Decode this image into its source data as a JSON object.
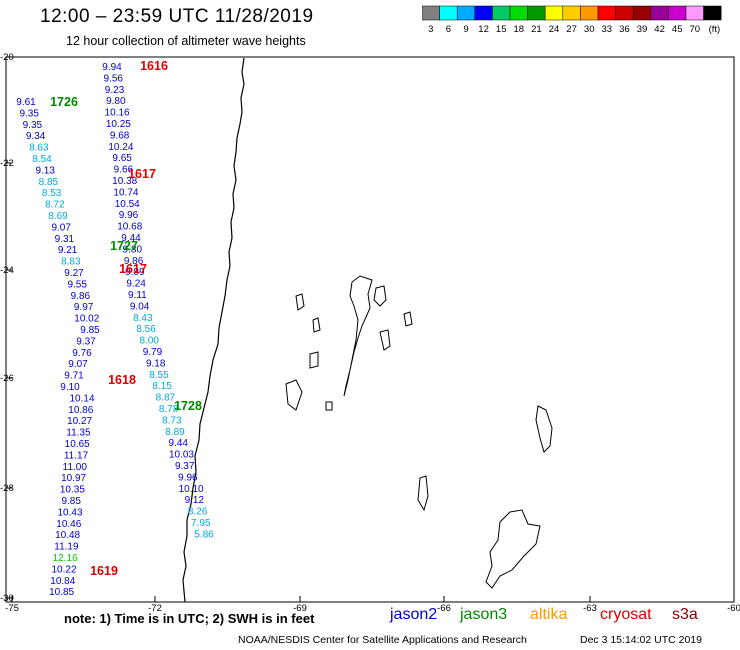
{
  "header": {
    "title": "12:00 – 23:59 UTC 11/28/2019",
    "subtitle": "12 hour collection of altimeter wave heights"
  },
  "colorbar": {
    "colors": [
      "#808080",
      "#00ffff",
      "#00aaff",
      "#0000ff",
      "#00cc66",
      "#00dd00",
      "#009900",
      "#ffff00",
      "#ffcc00",
      "#ff9900",
      "#ff0000",
      "#cc0000",
      "#990000",
      "#990099",
      "#cc00cc",
      "#ff99ff",
      "#000000"
    ],
    "labels": [
      "3",
      "6",
      "9",
      "12",
      "15",
      "18",
      "21",
      "24",
      "27",
      "30",
      "33",
      "36",
      "39",
      "42",
      "45",
      "70",
      "(ft)"
    ]
  },
  "axes": {
    "lon_labels": [
      "-75",
      "-72",
      "-69",
      "-66",
      "-63",
      "-60"
    ],
    "lat_labels": [
      "-20",
      "-22",
      "-24",
      "-26",
      "-28",
      "-30"
    ]
  },
  "passes": [
    {
      "time": "1616",
      "color": "#e00000"
    },
    {
      "time": "1726",
      "color": "#008800"
    },
    {
      "time": "1617",
      "color": "#e00000"
    },
    {
      "time": "1727",
      "color": "#008800"
    },
    {
      "time": "1617",
      "color": "#e00000"
    },
    {
      "time": "1618",
      "color": "#e00000"
    },
    {
      "time": "1728",
      "color": "#008800"
    },
    {
      "time": "1619",
      "color": "#e00000"
    }
  ],
  "tracks": {
    "track_a": [
      "9.94",
      "9.56",
      "9.23",
      "9.80",
      "10.16",
      "10.25",
      "9.68",
      "10.24",
      "9.65",
      "9.66",
      "10.38",
      "10.74",
      "10.54",
      "9.96",
      "10.68",
      "9.44",
      "9.80",
      "9.86",
      "9.89",
      "9.24",
      "9.11",
      "9.04",
      "8.43",
      "8.56",
      "8.00",
      "9.79",
      "9.18",
      "8.55",
      "8.15",
      "8.87",
      "8.78",
      "8.73",
      "8.89",
      "9.44",
      "10.03",
      "9.37",
      "9.96",
      "10.10",
      "9.12",
      "8.26",
      "7.95",
      "5.86"
    ],
    "track_b": [
      "9.61",
      "9.35",
      "9.35",
      "9.34",
      "8.63",
      "8.54",
      "9.13",
      "8.85",
      "8.53",
      "8.72",
      "8.69",
      "9.07",
      "9.31",
      "9.21",
      "8.83",
      "9.27",
      "9.55",
      "9.86",
      "9.97",
      "10.02",
      "9.85",
      "9.37",
      "9.76",
      "9.07",
      "9.71",
      "9.10",
      "10.14",
      "10.86",
      "10.27",
      "11.35",
      "10.65",
      "11.17",
      "11.00",
      "10.97",
      "10.35",
      "9.85",
      "10.43",
      "10.46",
      "10.48",
      "11.19",
      "12.16",
      "10.22",
      "10.84",
      "10.85"
    ]
  },
  "footer": {
    "note": "note:  1) Time is in UTC;  2) SWH is in feet",
    "satellites": [
      {
        "name": "jason2",
        "color": "#0000cc"
      },
      {
        "name": "jason3",
        "color": "#008800"
      },
      {
        "name": "altika",
        "color": "#ff9900"
      },
      {
        "name": "cryosat",
        "color": "#dd0000"
      },
      {
        "name": "s3a",
        "color": "#880000"
      }
    ],
    "credit": "NOAA/NESDIS Center for Satellite Applications and Research",
    "timestamp": "Dec  3 15:14:02 UTC 2019"
  }
}
